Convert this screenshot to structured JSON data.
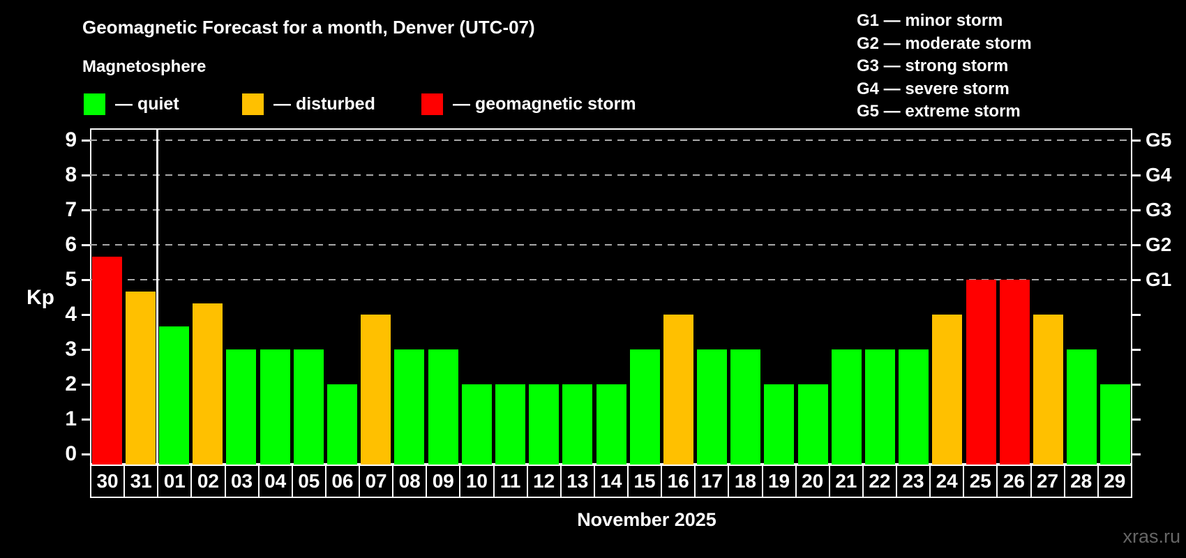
{
  "header": {
    "title": "Geomagnetic Forecast for a month, Denver (UTC-07)",
    "subtitle": "Magnetosphere",
    "legend": [
      {
        "id": "quiet",
        "label": "— quiet",
        "color": "#00ff00"
      },
      {
        "id": "disturbed",
        "label": "— disturbed",
        "color": "#ffc000"
      },
      {
        "id": "storm",
        "label": "— geomagnetic storm",
        "color": "#ff0000"
      }
    ],
    "g_scale_legend": [
      "G1 — minor storm",
      "G2 — moderate storm",
      "G3 — strong storm",
      "G4 — severe storm",
      "G5 — extreme storm"
    ]
  },
  "footer": {
    "xlabel": "November 2025",
    "watermark": "xras.ru"
  },
  "chart_data": {
    "type": "bar",
    "title": "Geomagnetic Forecast for a month, Denver (UTC-07)",
    "xlabel": "November 2025",
    "ylabel": "Kp",
    "ylim": [
      0,
      9.6
    ],
    "grid": "dashed horizontal lines at Kp 5-9 (G1-G5 levels) only",
    "legend_position": "top",
    "yticks": [
      0,
      1,
      2,
      3,
      4,
      5,
      6,
      7,
      8,
      9
    ],
    "gridlines_at": [
      5,
      6,
      7,
      8,
      9
    ],
    "right_axis_labels": [
      {
        "value": 5,
        "label": "G1"
      },
      {
        "value": 6,
        "label": "G2"
      },
      {
        "value": 7,
        "label": "G3"
      },
      {
        "value": 8,
        "label": "G4"
      },
      {
        "value": 9,
        "label": "G5"
      }
    ],
    "month_separator_after_index": 1,
    "categories": [
      "30",
      "31",
      "01",
      "02",
      "03",
      "04",
      "05",
      "06",
      "07",
      "08",
      "09",
      "10",
      "11",
      "12",
      "13",
      "14",
      "15",
      "16",
      "17",
      "18",
      "19",
      "20",
      "21",
      "22",
      "23",
      "24",
      "25",
      "26",
      "27",
      "28",
      "29"
    ],
    "values": [
      5.67,
      4.67,
      3.67,
      4.33,
      3,
      3,
      3,
      2,
      4,
      3,
      3,
      2,
      2,
      2,
      2,
      2,
      3,
      4,
      3,
      3,
      2,
      2,
      3,
      3,
      3,
      4,
      5,
      5,
      4,
      3,
      2
    ],
    "statuses": [
      "storm",
      "disturbed",
      "quiet",
      "disturbed",
      "quiet",
      "quiet",
      "quiet",
      "quiet",
      "disturbed",
      "quiet",
      "quiet",
      "quiet",
      "quiet",
      "quiet",
      "quiet",
      "quiet",
      "quiet",
      "disturbed",
      "quiet",
      "quiet",
      "quiet",
      "quiet",
      "quiet",
      "quiet",
      "quiet",
      "disturbed",
      "storm",
      "storm",
      "disturbed",
      "quiet",
      "quiet"
    ],
    "status_colors": {
      "quiet": "#00ff00",
      "disturbed": "#ffc000",
      "storm": "#ff0000"
    }
  }
}
